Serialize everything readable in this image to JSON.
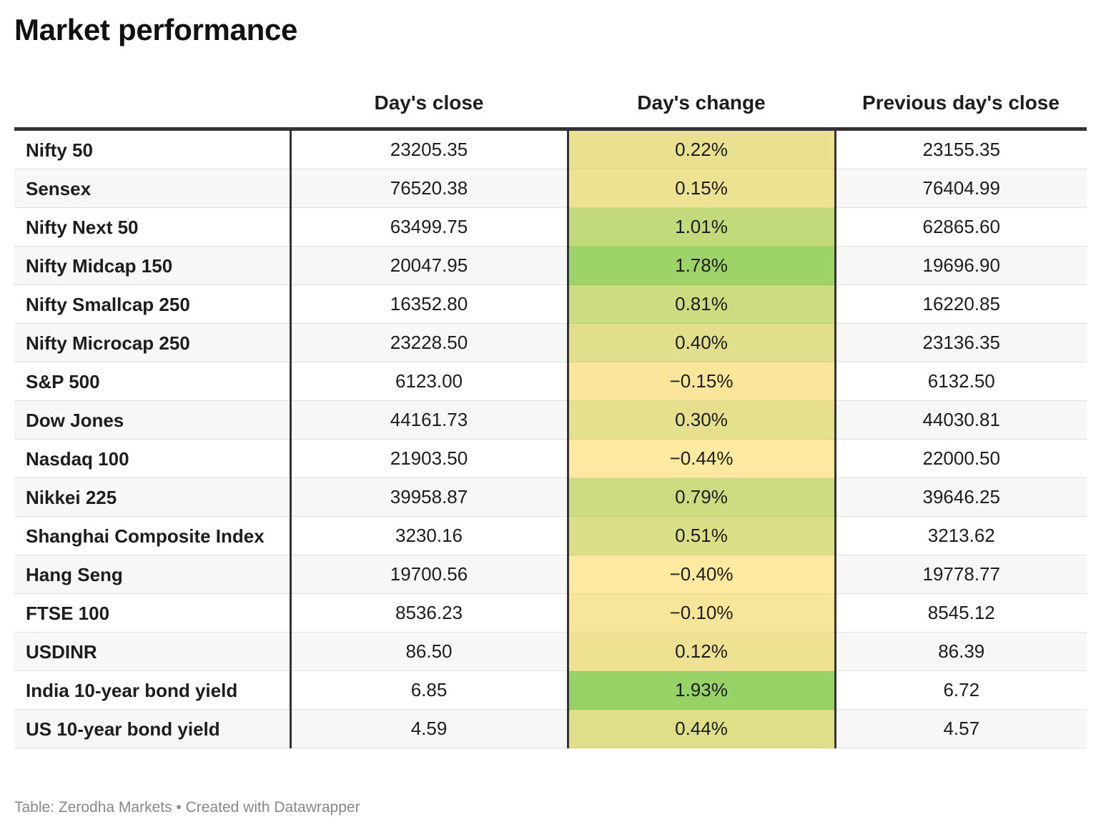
{
  "title": "Market performance",
  "footer": "Table: Zerodha Markets • Created with Datawrapper",
  "chart_data": {
    "type": "table",
    "columns": [
      "",
      "Day's close",
      "Day's change",
      "Previous day's close"
    ],
    "rows": [
      {
        "name": "Nifty 50",
        "close": "23205.35",
        "change": "0.22%",
        "change_value": 0.22,
        "prev": "23155.35"
      },
      {
        "name": "Sensex",
        "close": "76520.38",
        "change": "0.15%",
        "change_value": 0.15,
        "prev": "76404.99"
      },
      {
        "name": "Nifty Next 50",
        "close": "63499.75",
        "change": "1.01%",
        "change_value": 1.01,
        "prev": "62865.60"
      },
      {
        "name": "Nifty Midcap 150",
        "close": "20047.95",
        "change": "1.78%",
        "change_value": 1.78,
        "prev": "19696.90"
      },
      {
        "name": "Nifty Smallcap 250",
        "close": "16352.80",
        "change": "0.81%",
        "change_value": 0.81,
        "prev": "16220.85"
      },
      {
        "name": "Nifty Microcap 250",
        "close": "23228.50",
        "change": "0.40%",
        "change_value": 0.4,
        "prev": "23136.35"
      },
      {
        "name": "S&P 500",
        "close": "6123.00",
        "change": "−0.15%",
        "change_value": -0.15,
        "prev": "6132.50"
      },
      {
        "name": "Dow Jones",
        "close": "44161.73",
        "change": "0.30%",
        "change_value": 0.3,
        "prev": "44030.81"
      },
      {
        "name": "Nasdaq 100",
        "close": "21903.50",
        "change": "−0.44%",
        "change_value": -0.44,
        "prev": "22000.50"
      },
      {
        "name": "Nikkei 225",
        "close": "39958.87",
        "change": "0.79%",
        "change_value": 0.79,
        "prev": "39646.25"
      },
      {
        "name": "Shanghai Composite Index",
        "close": "3230.16",
        "change": "0.51%",
        "change_value": 0.51,
        "prev": "3213.62"
      },
      {
        "name": "Hang Seng",
        "close": "19700.56",
        "change": "−0.40%",
        "change_value": -0.4,
        "prev": "19778.77"
      },
      {
        "name": "FTSE 100",
        "close": "8536.23",
        "change": "−0.10%",
        "change_value": -0.1,
        "prev": "8545.12"
      },
      {
        "name": "USDINR",
        "close": "86.50",
        "change": "0.12%",
        "change_value": 0.12,
        "prev": "86.39"
      },
      {
        "name": "India 10-year bond yield",
        "close": "6.85",
        "change": "1.93%",
        "change_value": 1.93,
        "prev": "6.72"
      },
      {
        "name": "US 10-year bond yield",
        "close": "4.59",
        "change": "0.44%",
        "change_value": 0.44,
        "prev": "4.57"
      }
    ],
    "color_scale": {
      "negative": "#fde9a0",
      "zero": "#f4e395",
      "positive": "#96d265"
    }
  }
}
